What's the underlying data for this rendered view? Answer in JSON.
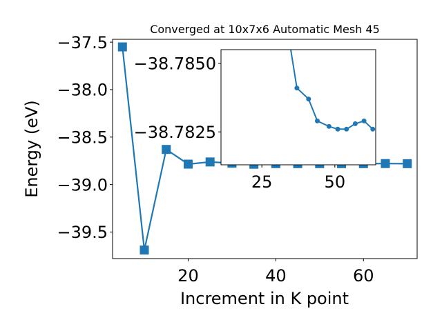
{
  "chart_data": [
    {
      "type": "line",
      "title": "Converged at 10x7x6 Automatic Mesh 45",
      "xlabel": "Increment in K point",
      "ylabel": "Energy (eV)",
      "xlim": [
        2.75,
        72.25
      ],
      "ylim": [
        -39.78,
        -37.47
      ],
      "xticks": [
        20,
        40,
        60
      ],
      "yticks": [
        -37.5,
        -38.0,
        -38.5,
        -39.0,
        -39.5
      ],
      "ytick_labels": [
        "−37.5",
        "−38.0",
        "−38.5",
        "−39.0",
        "−39.5"
      ],
      "marker": "square",
      "color": "#1f77b4",
      "grid": false,
      "series": [
        {
          "x": [
            5,
            10,
            15,
            20,
            25,
            30,
            35,
            40,
            45,
            50,
            55,
            60,
            65,
            70
          ],
          "y": [
            -37.55,
            -39.69,
            -38.63,
            -38.785,
            -38.762,
            -38.775,
            -38.786,
            -38.78,
            -38.78,
            -38.78,
            -38.78,
            -38.78,
            -38.779,
            -38.78
          ]
        }
      ]
    },
    {
      "type": "line",
      "title": "",
      "xlabel": "",
      "ylabel": "",
      "xlim": [
        11.0,
        64.0
      ],
      "ylim": [
        -38.7813,
        -38.7855
      ],
      "xticks": [
        25,
        50
      ],
      "yticks": [
        -38.785,
        -38.7825
      ],
      "ytick_labels": [
        "−38.7850",
        "−38.7825"
      ],
      "marker": "circle",
      "color": "#1f77b4",
      "grid": false,
      "series": [
        {
          "x": [
            34,
            37,
            41,
            44,
            48,
            51,
            54,
            57,
            60,
            63
          ],
          "y": [
            -38.7861,
            -38.7841,
            -38.7837,
            -38.7829,
            -38.7827,
            -38.7826,
            -38.7826,
            -38.7828,
            -38.7829,
            -38.7826
          ]
        }
      ]
    }
  ]
}
